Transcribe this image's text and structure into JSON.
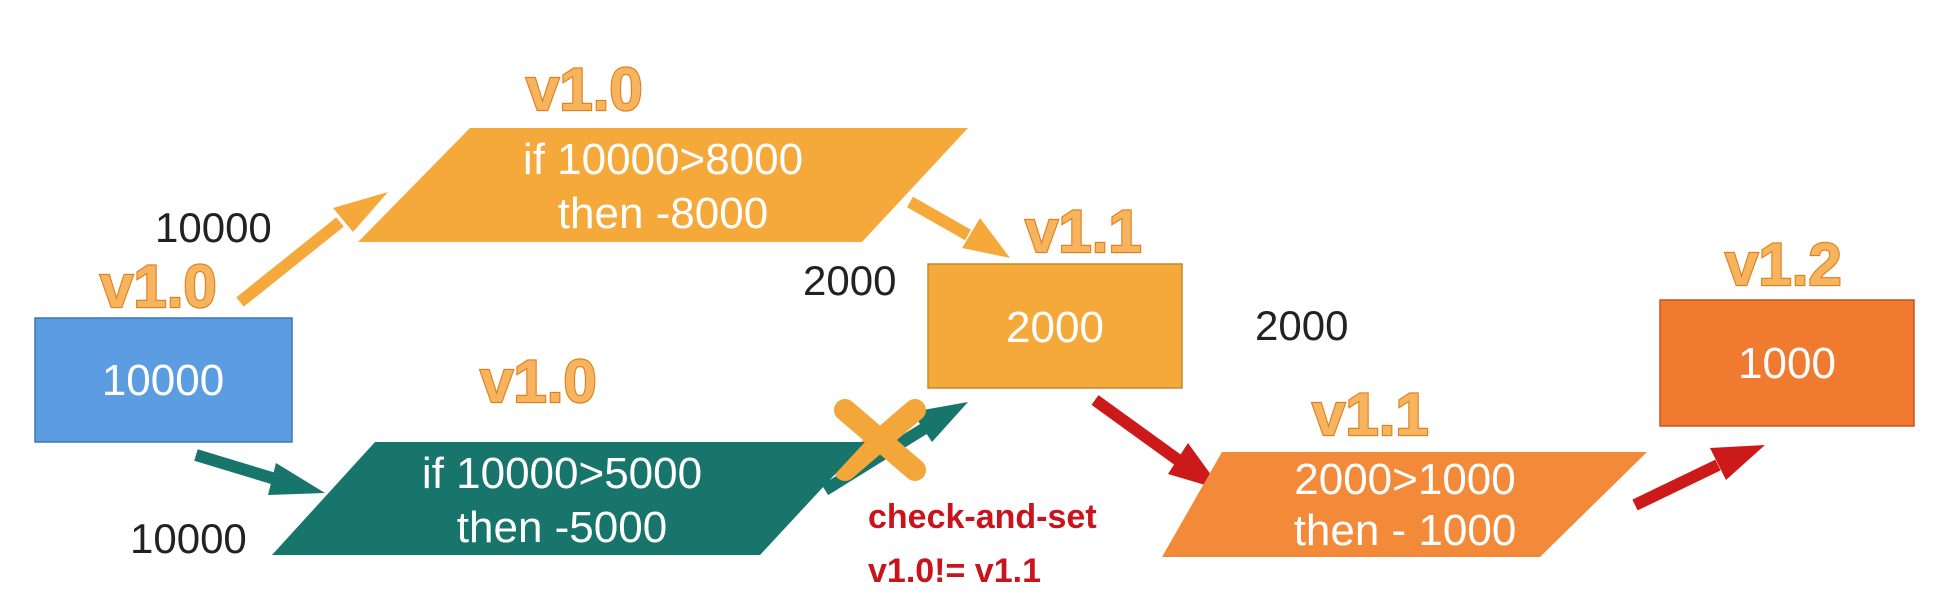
{
  "diagram": {
    "top_path": {
      "version": "v1.0",
      "input_value": "10000",
      "condition": "if 10000>8000",
      "action": "then -8000"
    },
    "bottom_path": {
      "version": "v1.0",
      "input_value": "10000",
      "condition": "if 10000>5000",
      "action": "then -5000"
    },
    "start": {
      "version": "v1.0",
      "value": "10000"
    },
    "after_first": {
      "version": "v1.1",
      "value": "2000",
      "input_value": "2000"
    },
    "second_update": {
      "version": "v1.1",
      "input_value": "2000",
      "condition": "2000>1000",
      "action": "then - 1000"
    },
    "final": {
      "version": "v1.2",
      "value": "1000"
    },
    "check_and_set": {
      "line1": "check-and-set",
      "line2": "v1.0!= v1.1"
    },
    "colors": {
      "start_box": "#5b9de0",
      "top_box": "#f6a93b",
      "bottom_box": "#17756c",
      "mid_box": "#f6a93b",
      "update_box": "#f28a3a",
      "final_box": "#f07a30",
      "version_label": "#f6b45e",
      "red_arrow": "#cc1a1a",
      "reject_cross": "#f3a73a"
    }
  }
}
